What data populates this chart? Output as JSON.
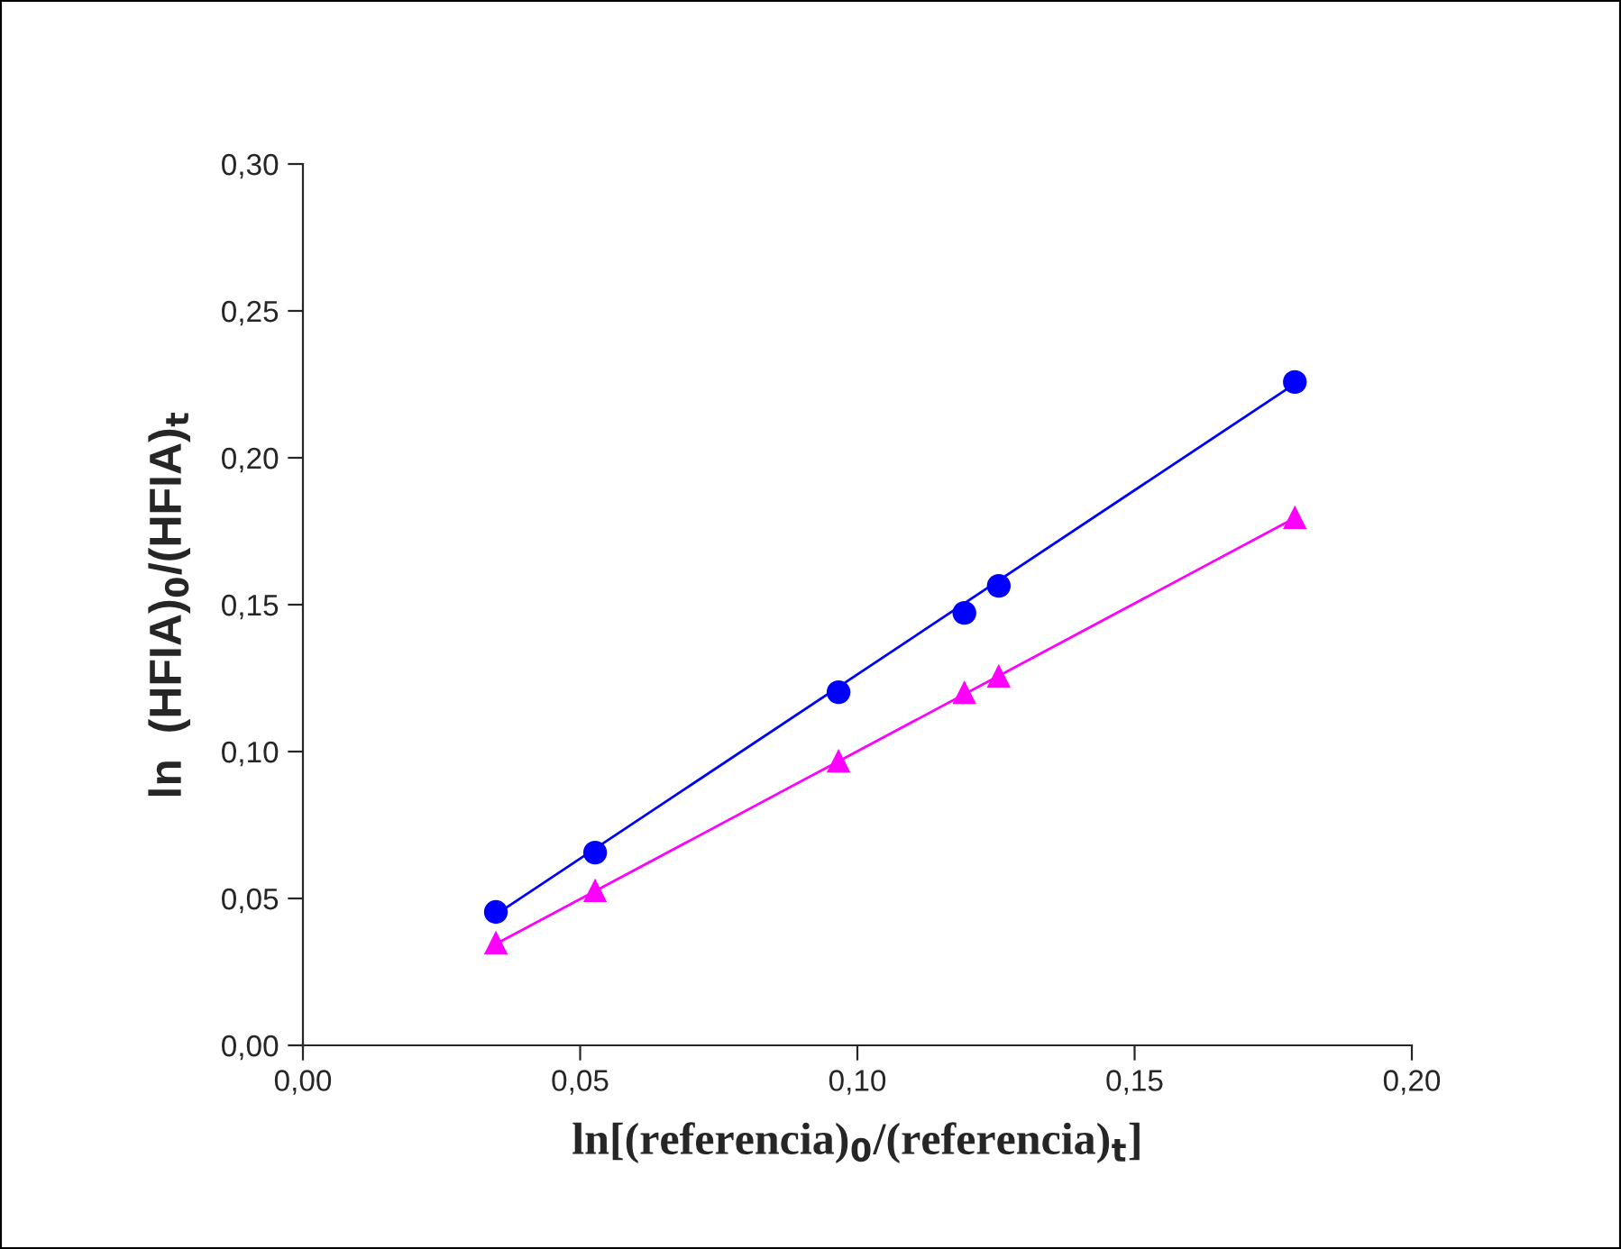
{
  "chart_data": {
    "type": "scatter",
    "xlabel": "ln[(referencia)$_{0}$/(referencia)$_{t}$]",
    "ylabel": "ln  (HFIA)$_{0}$/(HFIA)$_{t}$",
    "series": [
      {
        "color": "#0000ff",
        "marker": "circle",
        "x": [
          0.0348,
          0.0527,
          0.0966,
          0.1193,
          0.1255,
          0.1789
        ],
        "values": [
          0.0454,
          0.0656,
          0.1202,
          0.1472,
          0.1564,
          0.2258
        ]
      },
      {
        "color": "#ff00ff",
        "marker": "triangle",
        "x": [
          0.0348,
          0.0527,
          0.0966,
          0.1193,
          0.1255,
          0.1789
        ],
        "values": [
          0.035,
          0.0528,
          0.0969,
          0.1202,
          0.1258,
          0.1798
        ]
      },
      {
        "type": "line",
        "color": "#0000ff",
        "marker": "none",
        "line_style": "solid",
        "x": [
          0.0348,
          0.1789
        ],
        "values": [
          0.0445,
          0.2252
        ]
      },
      {
        "type": "line",
        "color": "#ff00ff",
        "marker": "none",
        "line_style": "solid",
        "x": [
          0.0348,
          0.1789
        ],
        "values": [
          0.0345,
          0.1795
        ]
      }
    ],
    "xlim": [
      0,
      0.2
    ],
    "xticks": [
      {
        "value": 0,
        "label": "0,00"
      },
      {
        "value": 0.05,
        "label": "0,05"
      },
      {
        "value": 0.1,
        "label": "0,10"
      },
      {
        "value": 0.15,
        "label": "0,15"
      },
      {
        "value": 0.2,
        "label": "0,20"
      }
    ],
    "ylim": [
      0,
      0.3
    ],
    "yticks": [
      {
        "value": 0,
        "label": "0,00"
      },
      {
        "value": 0.05,
        "label": "0,05"
      },
      {
        "value": 0.1,
        "label": "0,10"
      },
      {
        "value": 0.15,
        "label": "0,15"
      },
      {
        "value": 0.2,
        "label": "0,20"
      },
      {
        "value": 0.25,
        "label": "0,25"
      },
      {
        "value": 0.3,
        "label": "0,30"
      }
    ],
    "grid": false,
    "legend": false
  }
}
